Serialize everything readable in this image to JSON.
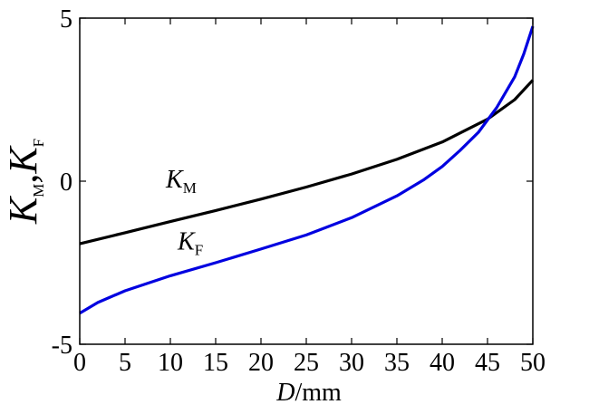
{
  "chart_data": {
    "type": "line",
    "title": "",
    "xlabel": {
      "main": "D",
      "unit": "/mm"
    },
    "ylabel": {
      "k1": "K",
      "s1": "M",
      "sep": ",",
      "k2": "K",
      "s2": "F"
    },
    "xlim": [
      0,
      50
    ],
    "ylim": [
      -5,
      5
    ],
    "xticks": [
      0,
      5,
      10,
      15,
      20,
      25,
      30,
      35,
      40,
      45,
      50
    ],
    "yticks": [
      -5,
      0,
      5
    ],
    "grid": false,
    "legend": "none",
    "series": [
      {
        "key": "KM",
        "label_main": "K",
        "label_sub": "M",
        "label_at": {
          "x": 9.5,
          "y": -0.2
        },
        "color": "#000000",
        "x": [
          0,
          5,
          10,
          15,
          20,
          25,
          30,
          35,
          40,
          45,
          48,
          50
        ],
        "y": [
          -1.92,
          -1.58,
          -1.24,
          -0.9,
          -0.55,
          -0.18,
          0.22,
          0.67,
          1.2,
          1.9,
          2.5,
          3.1
        ]
      },
      {
        "key": "KF",
        "label_main": "K",
        "label_sub": "F",
        "label_at": {
          "x": 10.8,
          "y": -2.1
        },
        "color": "#0000e0",
        "x": [
          0,
          2,
          5,
          10,
          15,
          20,
          25,
          30,
          35,
          38,
          40,
          42,
          44,
          46,
          48,
          49,
          50
        ],
        "y": [
          -4.05,
          -3.72,
          -3.36,
          -2.9,
          -2.5,
          -2.08,
          -1.65,
          -1.12,
          -0.45,
          0.05,
          0.45,
          0.95,
          1.5,
          2.25,
          3.2,
          3.9,
          4.75
        ]
      }
    ]
  }
}
